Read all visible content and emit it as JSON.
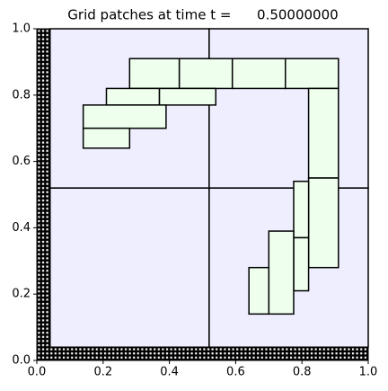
{
  "chart_data": {
    "type": "patches",
    "title": "Grid patches at time t =      0.50000000",
    "xlim": [
      0,
      1
    ],
    "ylim": [
      0,
      1
    ],
    "xticks": [
      {
        "value": 0,
        "label": "0.0"
      },
      {
        "value": 0.2,
        "label": "0.2"
      },
      {
        "value": 0.4,
        "label": "0.4"
      },
      {
        "value": 0.6,
        "label": "0.6"
      },
      {
        "value": 0.8,
        "label": "0.8"
      },
      {
        "value": 1,
        "label": "1.0"
      }
    ],
    "yticks": [
      {
        "value": 0,
        "label": "0.0"
      },
      {
        "value": 0.2,
        "label": "0.2"
      },
      {
        "value": 0.4,
        "label": "0.4"
      },
      {
        "value": 0.6,
        "label": "0.6"
      },
      {
        "value": 0.8,
        "label": "0.8"
      },
      {
        "value": 1,
        "label": "1.0"
      }
    ],
    "ghost_regions": [
      {
        "x": [
          0,
          0.04
        ],
        "y": [
          0,
          1
        ]
      },
      {
        "x": [
          0,
          1
        ],
        "y": [
          0,
          0.04
        ]
      }
    ],
    "levels": [
      {
        "color": "#eeeeff",
        "patches": [
          {
            "x": [
              0.04,
              0.52
            ],
            "y": [
              0.04,
              0.52
            ]
          },
          {
            "x": [
              0.52,
              1
            ],
            "y": [
              0.04,
              0.52
            ]
          },
          {
            "x": [
              0.04,
              0.52
            ],
            "y": [
              0.52,
              1
            ]
          },
          {
            "x": [
              0.52,
              1
            ],
            "y": [
              0.52,
              1
            ]
          }
        ]
      },
      {
        "color": "#eeffee",
        "patches": [
          {
            "x": [
              0.28,
              0.43
            ],
            "y": [
              0.82,
              0.91
            ]
          },
          {
            "x": [
              0.43,
              0.59
            ],
            "y": [
              0.82,
              0.91
            ]
          },
          {
            "x": [
              0.59,
              0.75
            ],
            "y": [
              0.82,
              0.91
            ]
          },
          {
            "x": [
              0.75,
              0.91
            ],
            "y": [
              0.82,
              0.91
            ]
          },
          {
            "x": [
              0.21,
              0.37
            ],
            "y": [
              0.77,
              0.82
            ]
          },
          {
            "x": [
              0.37,
              0.54
            ],
            "y": [
              0.77,
              0.82
            ]
          },
          {
            "x": [
              0.14,
              0.39
            ],
            "y": [
              0.7,
              0.77
            ]
          },
          {
            "x": [
              0.14,
              0.28
            ],
            "y": [
              0.64,
              0.7
            ]
          },
          {
            "x": [
              0.82,
              0.91
            ],
            "y": [
              0.55,
              0.82
            ]
          },
          {
            "x": [
              0.82,
              0.91
            ],
            "y": [
              0.28,
              0.55
            ]
          },
          {
            "x": [
              0.775,
              0.82
            ],
            "y": [
              0.37,
              0.54
            ]
          },
          {
            "x": [
              0.775,
              0.82
            ],
            "y": [
              0.21,
              0.37
            ]
          },
          {
            "x": [
              0.7,
              0.775
            ],
            "y": [
              0.14,
              0.39
            ]
          },
          {
            "x": [
              0.64,
              0.7
            ],
            "y": [
              0.14,
              0.28
            ]
          }
        ]
      }
    ]
  }
}
